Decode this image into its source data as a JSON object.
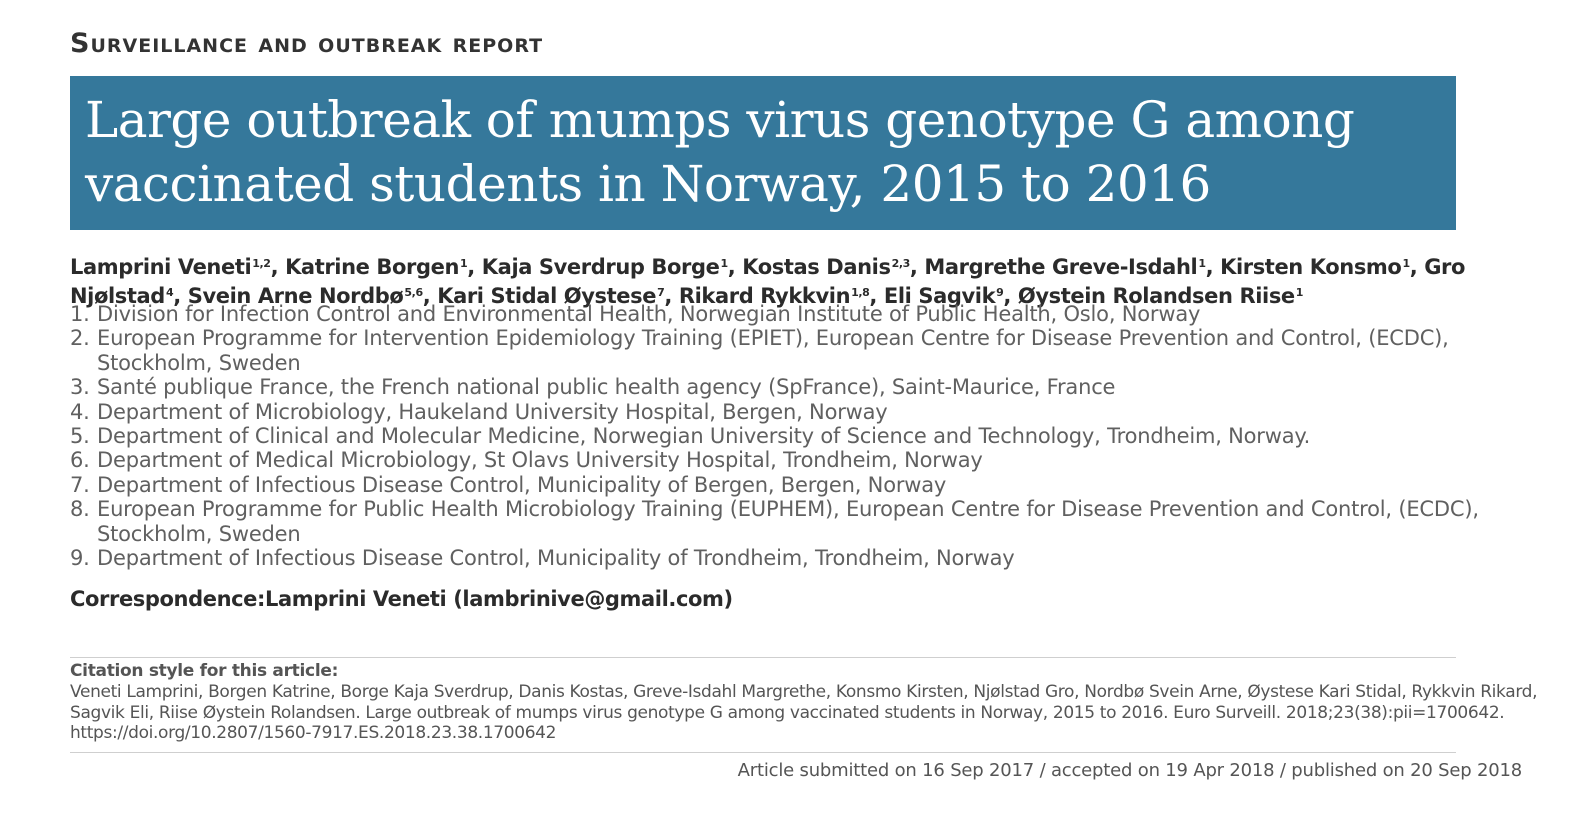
{
  "section_label": "Surveillance and outbreak report",
  "title": "Large outbreak of mumps virus genotype G among vaccinated students in Norway, 2015 to 2016",
  "authors": [
    {
      "name": "Lamprini Veneti",
      "sup": "1,2"
    },
    {
      "name": "Katrine Borgen",
      "sup": "1"
    },
    {
      "name": "Kaja Sverdrup Borge",
      "sup": "1"
    },
    {
      "name": "Kostas Danis",
      "sup": "2,3"
    },
    {
      "name": "Margrethe Greve-Isdahl",
      "sup": "1"
    },
    {
      "name": "Kirsten Konsmo",
      "sup": "1"
    },
    {
      "name": "Gro Njølstad",
      "sup": "4"
    },
    {
      "name": "Svein Arne Nordbø",
      "sup": "5,6"
    },
    {
      "name": "Kari Stidal Øystese",
      "sup": "7"
    },
    {
      "name": "Rikard Rykkvin",
      "sup": "1,8"
    },
    {
      "name": "Eli Sagvik",
      "sup": "9"
    },
    {
      "name": "Øystein Rolandsen Riise",
      "sup": "1"
    }
  ],
  "affiliations": [
    {
      "num": "1.",
      "text": "Division for Infection Control and Environmental Health, Norwegian Institute of Public Health, Oslo, Norway"
    },
    {
      "num": "2.",
      "text": "European Programme for Intervention Epidemiology Training (EPIET), European Centre for Disease Prevention and Control, (ECDC), Stockholm, Sweden"
    },
    {
      "num": "3.",
      "text": "Santé publique France, the French national public health agency (SpFrance), Saint-Maurice, France"
    },
    {
      "num": "4.",
      "text": "Department of Microbiology, Haukeland University Hospital, Bergen, Norway"
    },
    {
      "num": "5.",
      "text": "Department of Clinical and Molecular Medicine, Norwegian University of Science and Technology, Trondheim, Norway."
    },
    {
      "num": "6.",
      "text": "Department of Medical Microbiology, St Olavs University Hospital, Trondheim, Norway"
    },
    {
      "num": "7.",
      "text": "Department of Infectious Disease Control, Municipality of Bergen, Bergen, Norway"
    },
    {
      "num": "8.",
      "text": "European Programme for Public Health Microbiology Training (EUPHEM), European Centre for Disease Prevention and Control, (ECDC), Stockholm, Sweden"
    },
    {
      "num": "9.",
      "text": "Department of Infectious Disease Control, Municipality of Trondheim, Trondheim, Norway"
    }
  ],
  "correspondence": {
    "label": "Correspondence:",
    "value": "Lamprini Veneti (lambrinive@gmail.com)"
  },
  "citation": {
    "label": "Citation style for this article:",
    "text": "Veneti Lamprini, Borgen Katrine, Borge Kaja Sverdrup, Danis Kostas, Greve-Isdahl Margrethe, Konsmo Kirsten, Njølstad Gro, Nordbø Svein Arne, Øystese Kari Stidal, Rykkvin Rikard, Sagvik Eli, Riise Øystein Rolandsen. Large outbreak of mumps virus genotype G among vaccinated students in Norway, 2015 to 2016. Euro Surveill. 2018;23(38):pii=1700642. https://doi.org/10.2807/1560-7917.ES.2018.23.38.1700642"
  },
  "dates": "Article submitted on 16 Sep 2017 / accepted on 19 Apr 2018 / published on 20 Sep 2018",
  "colors": {
    "title_band": "#35789b",
    "title_text": "#ffffff"
  }
}
